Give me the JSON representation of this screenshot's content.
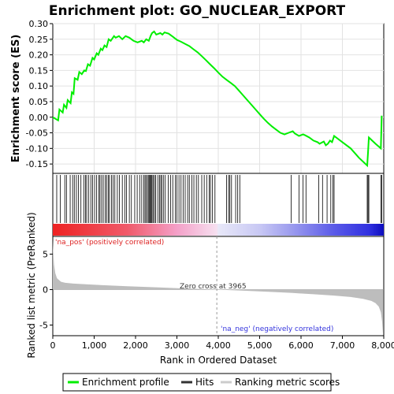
{
  "chart_data": {
    "type": "line",
    "title": "Enrichment plot: GO_NUCLEAR_EXPORT",
    "es_panel": {
      "ylabel": "Enrichment score (ES)",
      "ylim": [
        -0.18,
        0.3
      ],
      "yticks": [
        0.3,
        0.25,
        0.2,
        0.15,
        0.1,
        0.05,
        0.0,
        -0.05,
        -0.1,
        -0.15
      ],
      "ytick_labels": [
        "0.30",
        "0.25",
        "0.20",
        "0.15",
        "0.10",
        "0.05",
        "0.00",
        "-0.05",
        "-0.10",
        "-0.15"
      ],
      "grid": true,
      "series": [
        {
          "name": "Enrichment profile",
          "color": "#00ee00",
          "x": [
            0,
            130,
            160,
            240,
            270,
            330,
            360,
            430,
            460,
            500,
            530,
            600,
            640,
            700,
            760,
            800,
            850,
            900,
            960,
            1000,
            1060,
            1100,
            1160,
            1200,
            1250,
            1300,
            1350,
            1400,
            1480,
            1520,
            1600,
            1680,
            1760,
            1850,
            1950,
            2050,
            2150,
            2200,
            2260,
            2320,
            2370,
            2400,
            2450,
            2500,
            2600,
            2650,
            2700,
            2800,
            2900,
            3000,
            3100,
            3200,
            3300,
            3400,
            3500,
            3600,
            3700,
            3800,
            3900,
            4000,
            4100,
            4200,
            4300,
            4400,
            4500,
            4600,
            4700,
            4800,
            4900,
            5000,
            5100,
            5200,
            5300,
            5400,
            5500,
            5600,
            5700,
            5800,
            5850,
            5950,
            6050,
            6100,
            6200,
            6300,
            6400,
            6450,
            6550,
            6600,
            6650,
            6700,
            6750,
            6800,
            7000,
            7200,
            7400,
            7600,
            7620,
            7640,
            7800,
            7930,
            7950
          ],
          "y": [
            0.0,
            -0.01,
            0.025,
            0.015,
            0.04,
            0.03,
            0.055,
            0.045,
            0.08,
            0.075,
            0.125,
            0.12,
            0.145,
            0.138,
            0.15,
            0.148,
            0.17,
            0.165,
            0.19,
            0.185,
            0.205,
            0.2,
            0.22,
            0.215,
            0.23,
            0.225,
            0.25,
            0.245,
            0.26,
            0.255,
            0.26,
            0.25,
            0.26,
            0.255,
            0.245,
            0.24,
            0.245,
            0.24,
            0.25,
            0.245,
            0.262,
            0.27,
            0.275,
            0.265,
            0.27,
            0.265,
            0.272,
            0.268,
            0.258,
            0.248,
            0.242,
            0.235,
            0.228,
            0.218,
            0.208,
            0.196,
            0.183,
            0.17,
            0.157,
            0.143,
            0.13,
            0.12,
            0.11,
            0.1,
            0.085,
            0.07,
            0.055,
            0.04,
            0.025,
            0.01,
            -0.005,
            -0.018,
            -0.03,
            -0.04,
            -0.05,
            -0.055,
            -0.05,
            -0.045,
            -0.052,
            -0.06,
            -0.055,
            -0.058,
            -0.065,
            -0.075,
            -0.08,
            -0.085,
            -0.078,
            -0.09,
            -0.085,
            -0.075,
            -0.08,
            -0.06,
            -0.08,
            -0.1,
            -0.13,
            -0.155,
            -0.11,
            -0.065,
            -0.085,
            -0.1,
            0.005
          ]
        }
      ]
    },
    "hits_panel": {
      "hits": [
        95,
        180,
        290,
        330,
        420,
        480,
        520,
        570,
        620,
        680,
        750,
        790,
        820,
        870,
        920,
        960,
        1010,
        1060,
        1110,
        1140,
        1180,
        1220,
        1270,
        1300,
        1340,
        1370,
        1420,
        1460,
        1500,
        1560,
        1610,
        1680,
        1740,
        1780,
        1850,
        1900,
        1980,
        2040,
        2100,
        2150,
        2200,
        2230,
        2260,
        2290,
        2320,
        2340,
        2360,
        2380,
        2400,
        2430,
        2460,
        2490,
        2540,
        2580,
        2610,
        2640,
        2680,
        2720,
        2790,
        2850,
        2900,
        2960,
        3000,
        3050,
        3100,
        3150,
        3200,
        3260,
        3300,
        3360,
        3410,
        3470,
        3520,
        3600,
        3660,
        3720,
        3780,
        3810,
        3860,
        3920,
        4200,
        4250,
        4280,
        4320,
        4420,
        4470,
        4520,
        5760,
        5950,
        6050,
        6120,
        6430,
        6520,
        6630,
        6720,
        6770,
        6800,
        7600,
        7620,
        7640,
        7930,
        7950
      ]
    },
    "ranking_colorbar": {
      "stops": [
        {
          "rank": 0,
          "color": "#ee2222"
        },
        {
          "rank": 1800,
          "color": "#f05a6a"
        },
        {
          "rank": 3000,
          "color": "#f4a0c8"
        },
        {
          "rank": 3965,
          "color": "#f6e0f0"
        },
        {
          "rank": 4000,
          "color": "#e8e8f8"
        },
        {
          "rank": 5000,
          "color": "#c8c8f4"
        },
        {
          "rank": 5800,
          "color": "#9a9aee"
        },
        {
          "rank": 6800,
          "color": "#5a5ae8"
        },
        {
          "rank": 7650,
          "color": "#3030e0"
        },
        {
          "rank": 7980,
          "color": "#1010c0"
        }
      ],
      "pos_label": "'na_pos' (positively correlated)",
      "neg_label": "'na_neg' (negatively correlated)"
    },
    "ranked_metric_panel": {
      "ylabel": "Ranked list metric (PreRanked)",
      "ylim": [
        -6.5,
        7.5
      ],
      "yticks": [
        5,
        0,
        -5
      ],
      "ytick_labels": [
        "5",
        "0",
        "-5"
      ],
      "zero_cross_label": "Zero cross at 3965",
      "zero_cross": 3965,
      "fill_color": "#bdbdbd",
      "x": [
        0,
        10,
        30,
        60,
        100,
        200,
        300,
        500,
        800,
        1200,
        1800,
        2500,
        3200,
        3965,
        4500,
        5200,
        5800,
        6300,
        6800,
        7200,
        7500,
        7700,
        7800,
        7880,
        7930,
        7960,
        7980
      ],
      "y": [
        7.0,
        5.5,
        3.5,
        2.3,
        1.6,
        1.1,
        0.95,
        0.85,
        0.75,
        0.62,
        0.48,
        0.32,
        0.15,
        0.0,
        -0.12,
        -0.3,
        -0.48,
        -0.65,
        -0.85,
        -1.05,
        -1.3,
        -1.6,
        -1.9,
        -2.4,
        -3.2,
        -4.5,
        -6.2
      ]
    },
    "x_axis": {
      "xlabel": "Rank in Ordered Dataset",
      "xlim": [
        0,
        8000
      ],
      "xticks": [
        0,
        1000,
        2000,
        3000,
        4000,
        5000,
        6000,
        7000,
        8000
      ],
      "xtick_labels": [
        "0",
        "1,000",
        "2,000",
        "3,000",
        "4,000",
        "5,000",
        "6,000",
        "7,000",
        "8,000"
      ]
    },
    "legend": {
      "placement": "bottom",
      "items": [
        {
          "label": "Enrichment profile",
          "color": "#00ee00"
        },
        {
          "label": "Hits",
          "color": "#333333"
        },
        {
          "label": "Ranking metric scores",
          "color": "#cccccc"
        }
      ]
    }
  }
}
